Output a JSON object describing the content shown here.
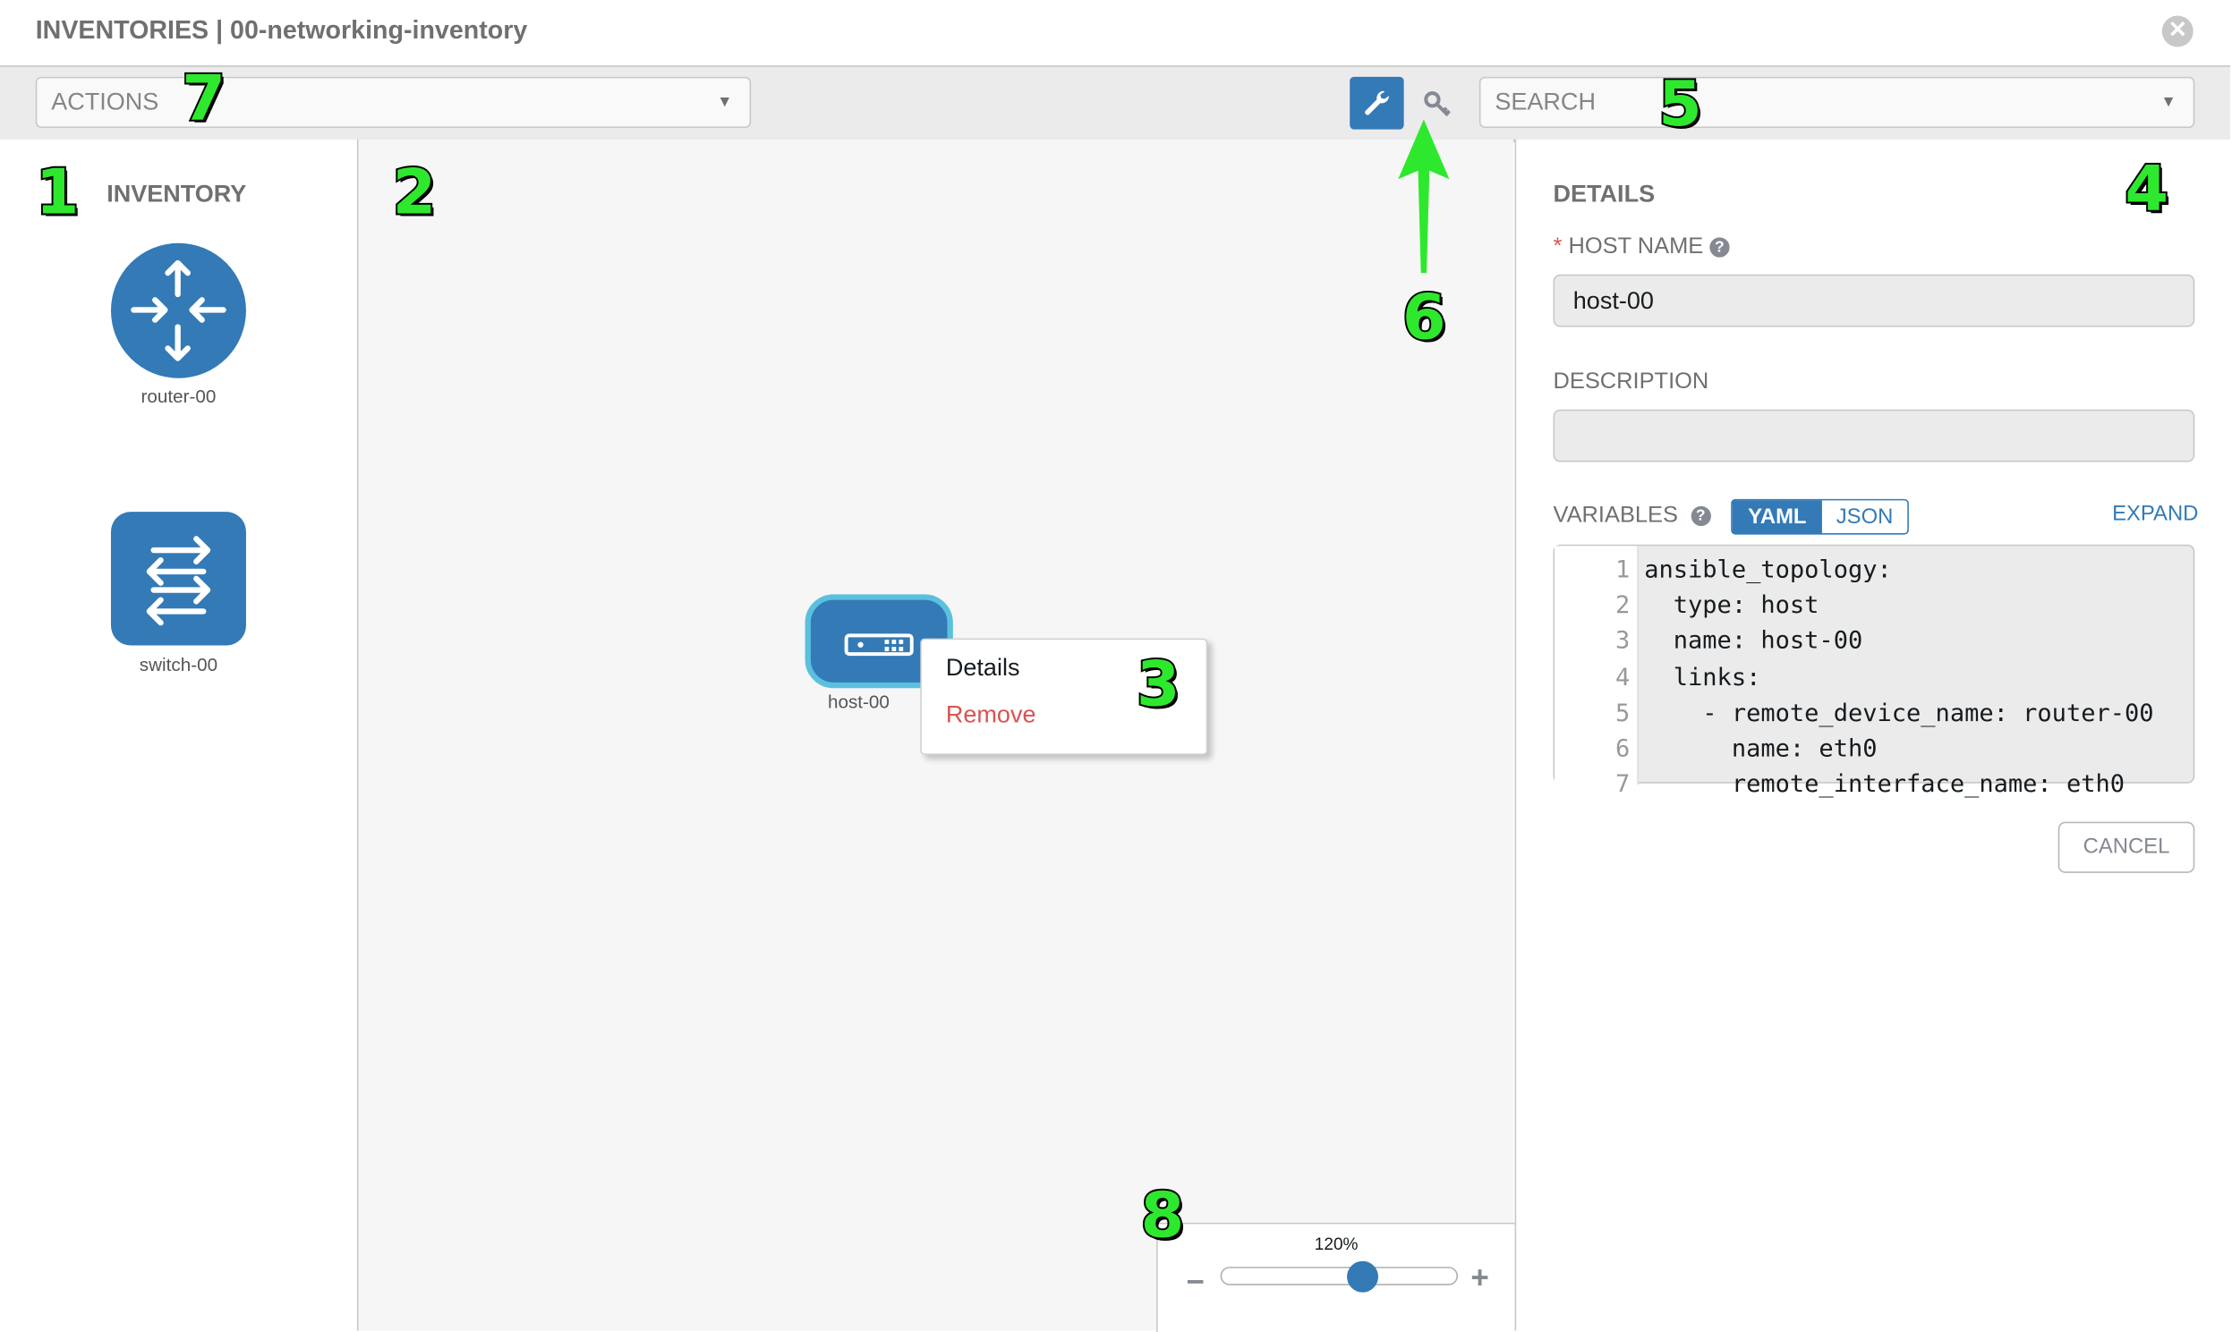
{
  "header": {
    "title": "INVENTORIES | 00-networking-inventory",
    "close_icon": "close-circle-icon"
  },
  "toolbar": {
    "actions_placeholder": "ACTIONS",
    "search_placeholder": "SEARCH",
    "tools": [
      {
        "icon": "wrench-icon",
        "active": true
      },
      {
        "icon": "key-icon",
        "active": false
      }
    ],
    "accent": "#337ab7"
  },
  "inventory": {
    "title": "INVENTORY",
    "items": [
      {
        "label": "router-00",
        "icon": "router-icon"
      },
      {
        "label": "switch-00",
        "icon": "switch-icon"
      }
    ]
  },
  "canvas": {
    "node": {
      "label": "host-00",
      "icon": "host-server-icon"
    },
    "context_menu": [
      {
        "label": "Details"
      },
      {
        "label": "Remove",
        "color": "#d9534f"
      }
    ],
    "zoom": {
      "value_label": "120%",
      "value_percent": 120,
      "slider_fraction": 0.6
    }
  },
  "details": {
    "title": "DETAILS",
    "required_mark": "*",
    "host_name_label": "HOST NAME",
    "host_name_value": "host-00",
    "description_label": "DESCRIPTION",
    "description_value": "",
    "variables_label": "VARIABLES",
    "format_options": [
      "YAML",
      "JSON"
    ],
    "format_selected": "YAML",
    "expand_label": "EXPAND",
    "code_lines": [
      {
        "n": "1",
        "text": "ansible_topology:"
      },
      {
        "n": "2",
        "text": "  type: host"
      },
      {
        "n": "3",
        "text": "  name: host-00"
      },
      {
        "n": "4",
        "text": "  links:"
      },
      {
        "n": "5",
        "text": "    - remote_device_name: router-00"
      },
      {
        "n": "6",
        "text": "      name: eth0"
      },
      {
        "n": "7",
        "text": "      remote_interface_name: eth0"
      }
    ],
    "cancel_label": "CANCEL"
  },
  "annotations": [
    "1",
    "2",
    "3",
    "4",
    "5",
    "6",
    "7",
    "8"
  ],
  "annotation_color": "#2ee82e"
}
